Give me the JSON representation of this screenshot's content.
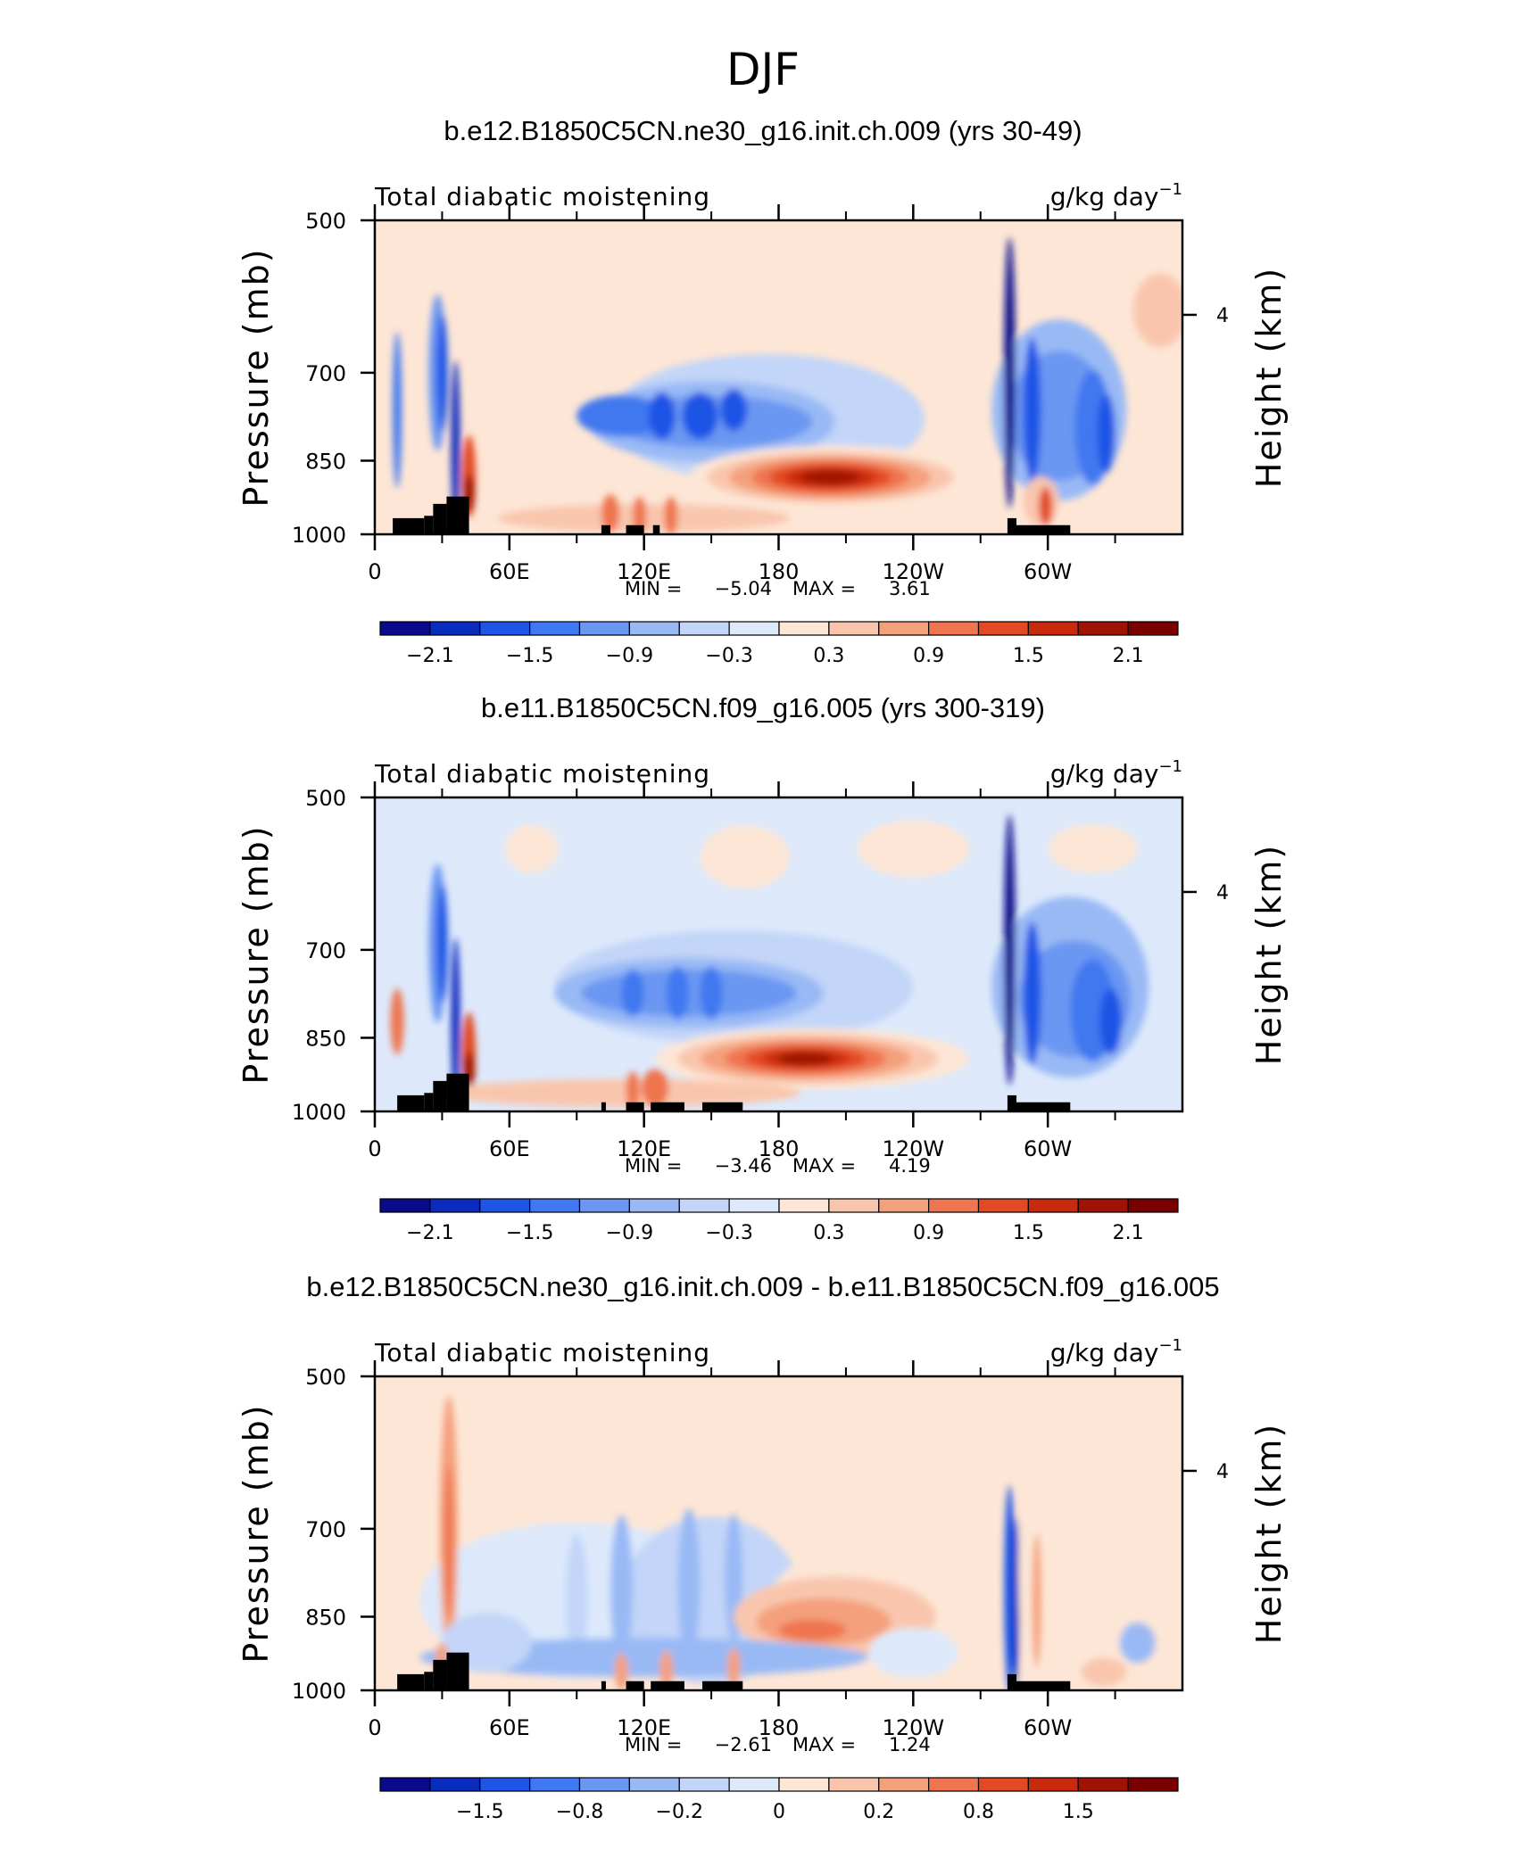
{
  "figure": {
    "title": "DJF",
    "panel_header_left": "Total diabatic moistening",
    "units": "g/kg day",
    "units_exponent": "−1",
    "ylabel_left": "Pressure (mb)",
    "ylabel_right": "Height (km)",
    "min_label": "MIN =",
    "max_label": "MAX ="
  },
  "chart_data": [
    {
      "type": "heatmap",
      "title": "b.e12.B1850C5CN.ne30_g16.init.ch.009 (yrs 30-49)",
      "header_left": "Total diabatic moistening",
      "units": "g/kg day⁻¹",
      "xlabel": "",
      "ylabel": "Pressure (mb)",
      "ylabel_right": "Height (km)",
      "xlim": [
        0,
        360
      ],
      "ylim": [
        1000,
        500
      ],
      "x_tick_labels": [
        "0",
        "60E",
        "120E",
        "180",
        "120W",
        "60W"
      ],
      "y_tick_labels": [
        "500",
        "700",
        "850",
        "1000"
      ],
      "right_tick_labels": [
        "4"
      ],
      "min": "−5.04",
      "max": "3.61",
      "colorbar_labels": [
        "−2.1",
        "−1.5",
        "−0.9",
        "−0.3",
        "0.3",
        "0.9",
        "1.5",
        "2.1"
      ],
      "colorbar_colors": [
        "#0a0a8c",
        "#0a2cbe",
        "#1f55e6",
        "#3f78f0",
        "#6b97f2",
        "#99b9f5",
        "#c3d5f8",
        "#dde9fb",
        "#fde6d6",
        "#f9c6ad",
        "#f4a07c",
        "#ef7550",
        "#e34a23",
        "#c92a0e",
        "#a01205",
        "#7a0000"
      ]
    },
    {
      "type": "heatmap",
      "title": "b.e11.B1850C5CN.f09_g16.005 (yrs 300-319)",
      "header_left": "Total diabatic moistening",
      "units": "g/kg day⁻¹",
      "xlabel": "",
      "ylabel": "Pressure (mb)",
      "ylabel_right": "Height (km)",
      "xlim": [
        0,
        360
      ],
      "ylim": [
        1000,
        500
      ],
      "x_tick_labels": [
        "0",
        "60E",
        "120E",
        "180",
        "120W",
        "60W"
      ],
      "y_tick_labels": [
        "500",
        "700",
        "850",
        "1000"
      ],
      "right_tick_labels": [
        "4"
      ],
      "min": "−3.46",
      "max": "4.19",
      "colorbar_labels": [
        "−2.1",
        "−1.5",
        "−0.9",
        "−0.3",
        "0.3",
        "0.9",
        "1.5",
        "2.1"
      ],
      "colorbar_colors": [
        "#0a0a8c",
        "#0a2cbe",
        "#1f55e6",
        "#3f78f0",
        "#6b97f2",
        "#99b9f5",
        "#c3d5f8",
        "#dde9fb",
        "#fde6d6",
        "#f9c6ad",
        "#f4a07c",
        "#ef7550",
        "#e34a23",
        "#c92a0e",
        "#a01205",
        "#7a0000"
      ]
    },
    {
      "type": "heatmap",
      "title": "b.e12.B1850C5CN.ne30_g16.init.ch.009 - b.e11.B1850C5CN.f09_g16.005",
      "header_left": "Total diabatic moistening",
      "units": "g/kg day⁻¹",
      "xlabel": "",
      "ylabel": "Pressure (mb)",
      "ylabel_right": "Height (km)",
      "xlim": [
        0,
        360
      ],
      "ylim": [
        1000,
        500
      ],
      "x_tick_labels": [
        "0",
        "60E",
        "120E",
        "180",
        "120W",
        "60W"
      ],
      "y_tick_labels": [
        "500",
        "700",
        "850",
        "1000"
      ],
      "right_tick_labels": [
        "4"
      ],
      "min": "−2.61",
      "max": "1.24",
      "colorbar_labels": [
        "−1.5",
        "−0.8",
        "−0.2",
        "0",
        "0.2",
        "0.8",
        "1.5"
      ],
      "colorbar_colors": [
        "#0a0a8c",
        "#0a2cbe",
        "#1f55e6",
        "#3f78f0",
        "#6b97f2",
        "#99b9f5",
        "#c3d5f8",
        "#dde9fb",
        "#fde6d6",
        "#f9c6ad",
        "#f4a07c",
        "#ef7550",
        "#e34a23",
        "#c92a0e",
        "#a01205",
        "#7a0000"
      ]
    }
  ]
}
